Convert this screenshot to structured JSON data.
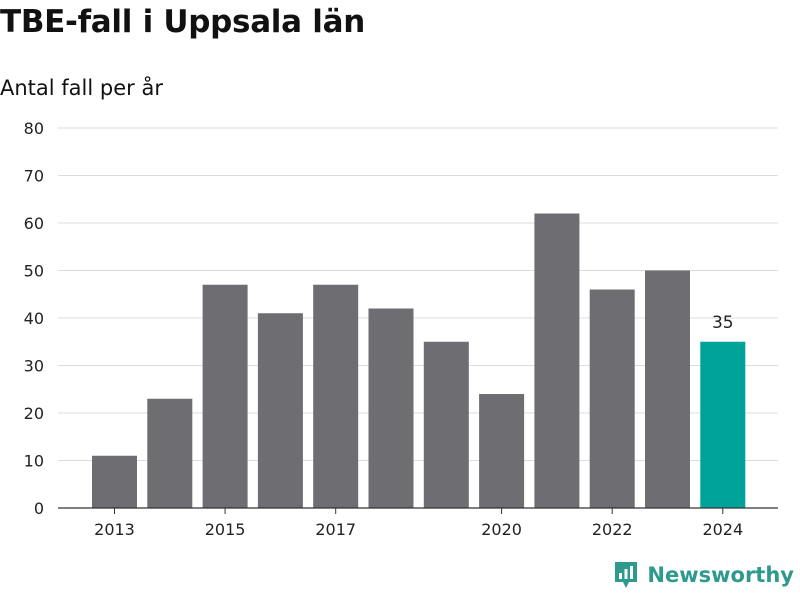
{
  "title": "TBE-fall i Uppsala län",
  "subtitle": "Antal fall per år",
  "brand": {
    "name": "Newsworthy",
    "icon": "newsworthy-logo-icon",
    "color": "#2e9a8e"
  },
  "chart_data": {
    "type": "bar",
    "categories": [
      "2013",
      "2014",
      "2015",
      "2016",
      "2017",
      "2018",
      "2019",
      "2020",
      "2021",
      "2022",
      "2023",
      "2024"
    ],
    "values": [
      11,
      23,
      47,
      41,
      47,
      42,
      35,
      24,
      62,
      46,
      50,
      35
    ],
    "x_tick_labels": [
      "2013",
      "2015",
      "2017",
      "2020",
      "2022",
      "2024"
    ],
    "y_ticks": [
      0,
      10,
      20,
      30,
      40,
      50,
      60,
      70,
      80
    ],
    "ylim": [
      0,
      80
    ],
    "grid": true,
    "bar_color": "#6d6d72",
    "highlight_color": "#00a39a",
    "highlight_category": "2024",
    "data_labels": [
      {
        "category": "2024",
        "text": "35"
      }
    ]
  }
}
